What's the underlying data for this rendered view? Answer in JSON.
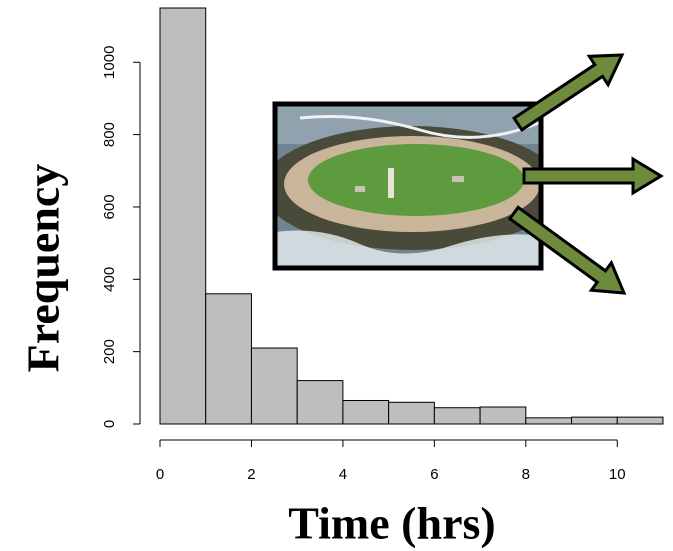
{
  "chart_data": {
    "type": "histogram",
    "x_label": "Time (hrs)",
    "y_label": "Frequency",
    "bins": [
      0,
      1,
      2,
      3,
      4,
      5,
      6,
      7,
      8,
      9,
      10,
      11
    ],
    "counts": [
      1150,
      360,
      210,
      120,
      65,
      60,
      45,
      47,
      17,
      19,
      19
    ],
    "color": "#bebebe",
    "xlim": [
      0,
      11
    ],
    "xticks": [
      0,
      2,
      4,
      6,
      8,
      10
    ],
    "ylim": [
      0,
      1150
    ],
    "yticks": [
      0,
      200,
      400,
      600,
      800,
      1000
    ]
  }
}
